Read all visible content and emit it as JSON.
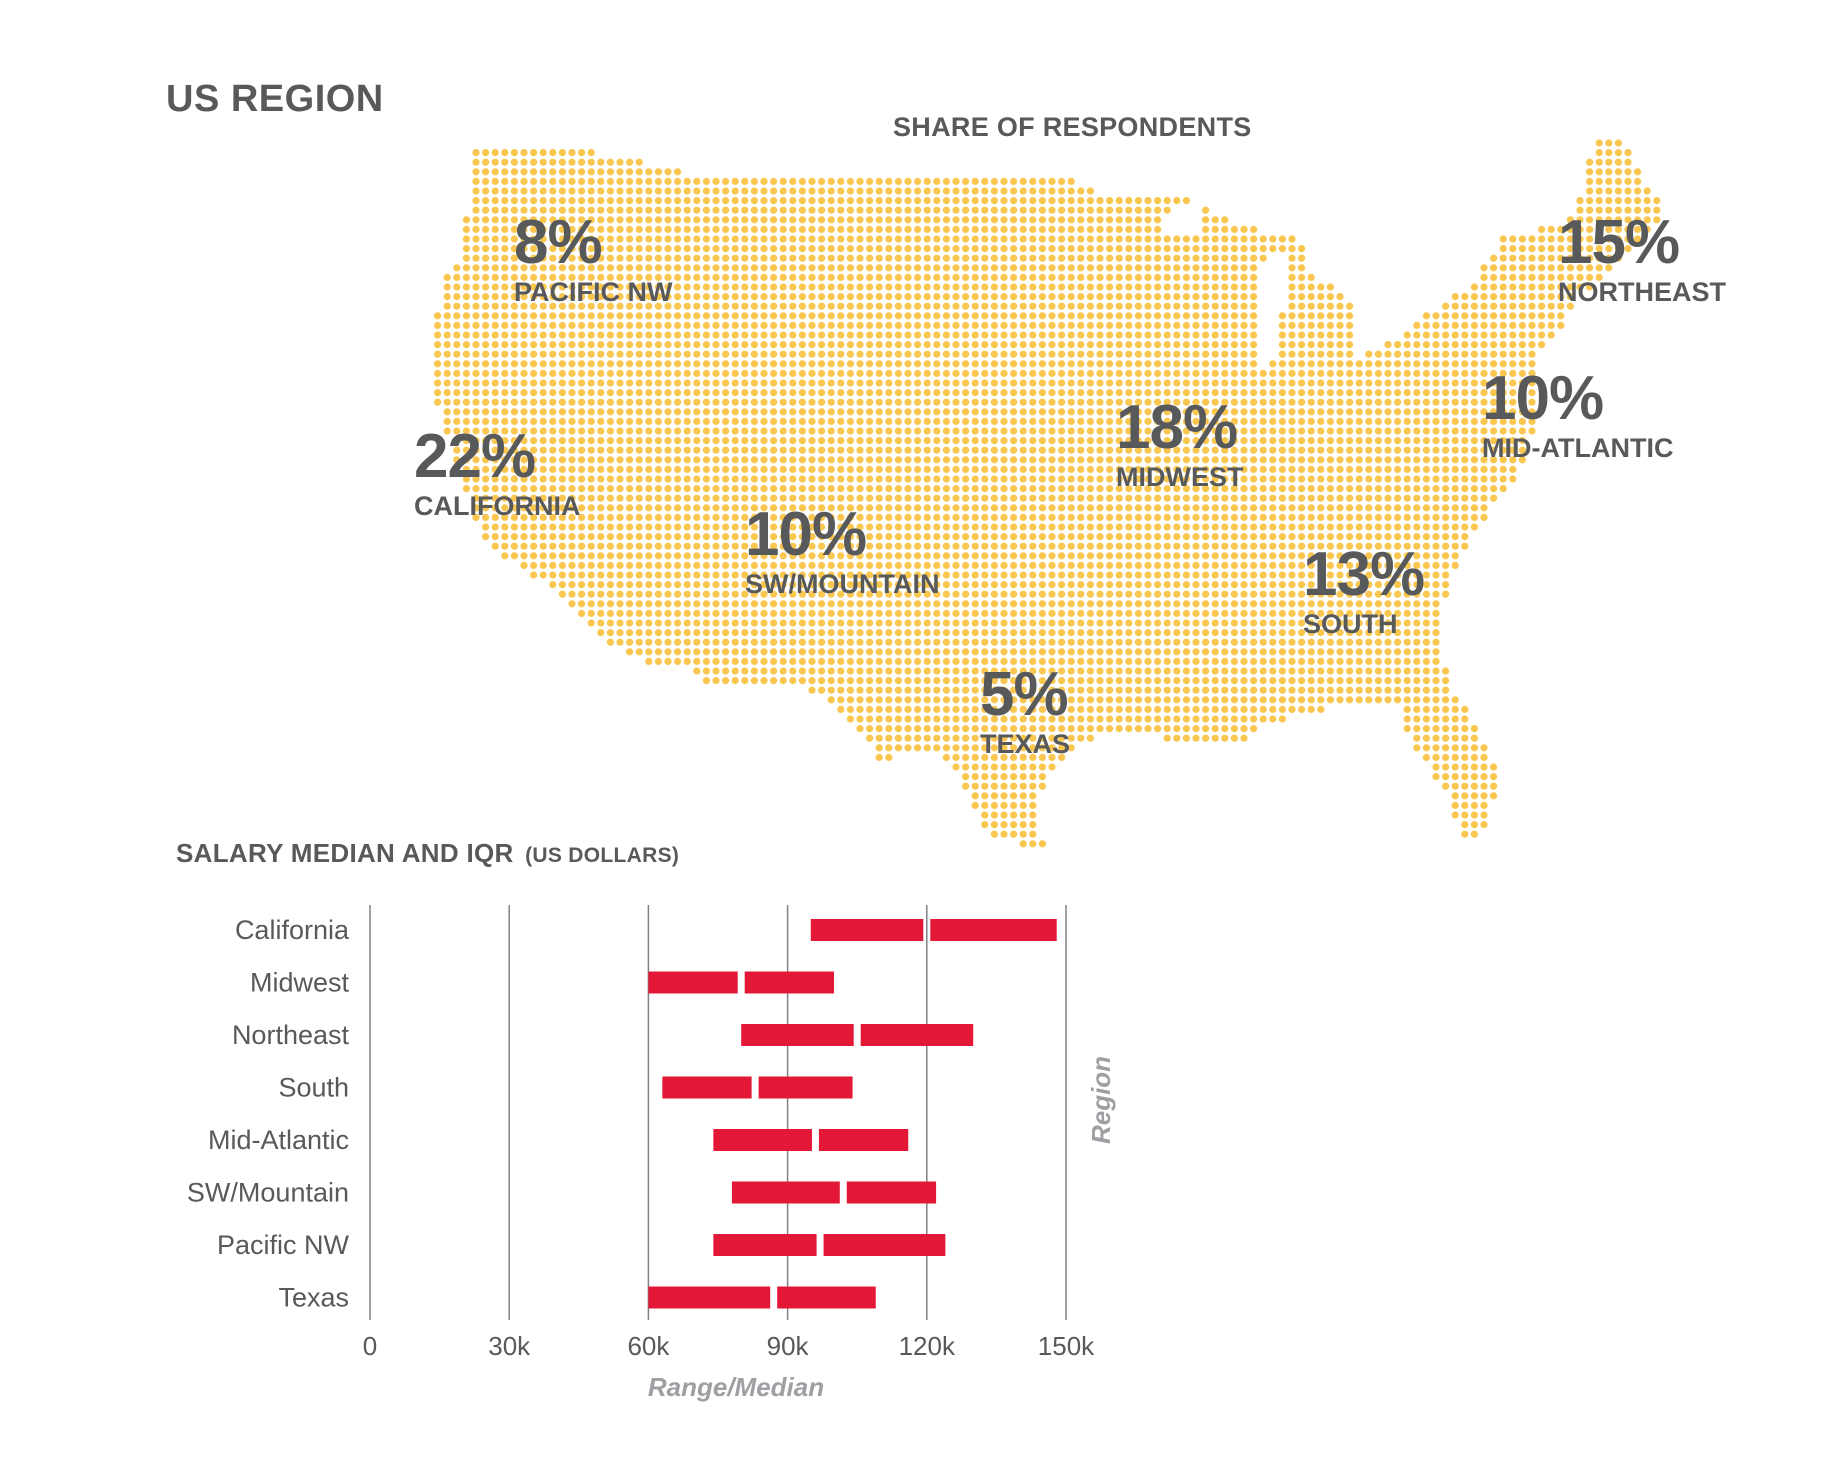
{
  "page": {
    "title": "US REGION"
  },
  "map": {
    "subtitle": "SHARE OF RESPONDENTS",
    "dot_color": "#f9c74f",
    "regions": [
      {
        "key": "pacific_nw",
        "pct": "8%",
        "name": "PACIFIC NW"
      },
      {
        "key": "california",
        "pct": "22%",
        "name": "CALIFORNIA"
      },
      {
        "key": "sw_mountain",
        "pct": "10%",
        "name": "SW/MOUNTAIN"
      },
      {
        "key": "texas",
        "pct": "5%",
        "name": "TEXAS"
      },
      {
        "key": "midwest",
        "pct": "18%",
        "name": "MIDWEST"
      },
      {
        "key": "south",
        "pct": "13%",
        "name": "SOUTH"
      },
      {
        "key": "mid_atlantic",
        "pct": "10%",
        "name": "MID-ATLANTIC"
      },
      {
        "key": "northeast",
        "pct": "15%",
        "name": "NORTHEAST"
      }
    ]
  },
  "salary": {
    "title": "SALARY MEDIAN AND IQR",
    "unit": "(US DOLLARS)"
  },
  "chart_data": {
    "type": "bar",
    "title": "SALARY MEDIAN AND IQR (US DOLLARS)",
    "xlabel": "Range/Median",
    "ylabel": "Region",
    "xlim": [
      0,
      150000
    ],
    "x_ticks": [
      0,
      30000,
      60000,
      90000,
      120000,
      150000
    ],
    "x_tick_labels": [
      "0",
      "30k",
      "60k",
      "90k",
      "120k",
      "150k"
    ],
    "grid": true,
    "bar_color": "#e31837",
    "categories": [
      "California",
      "Midwest",
      "Northeast",
      "South",
      "Mid-Atlantic",
      "SW/Mountain",
      "Pacific NW",
      "Texas"
    ],
    "q1": [
      95000,
      60000,
      80000,
      63000,
      74000,
      78000,
      74000,
      60000
    ],
    "median": [
      120000,
      80000,
      105000,
      83000,
      96000,
      102000,
      97000,
      87000
    ],
    "q3": [
      148000,
      100000,
      130000,
      104000,
      116000,
      122000,
      124000,
      109000
    ]
  }
}
